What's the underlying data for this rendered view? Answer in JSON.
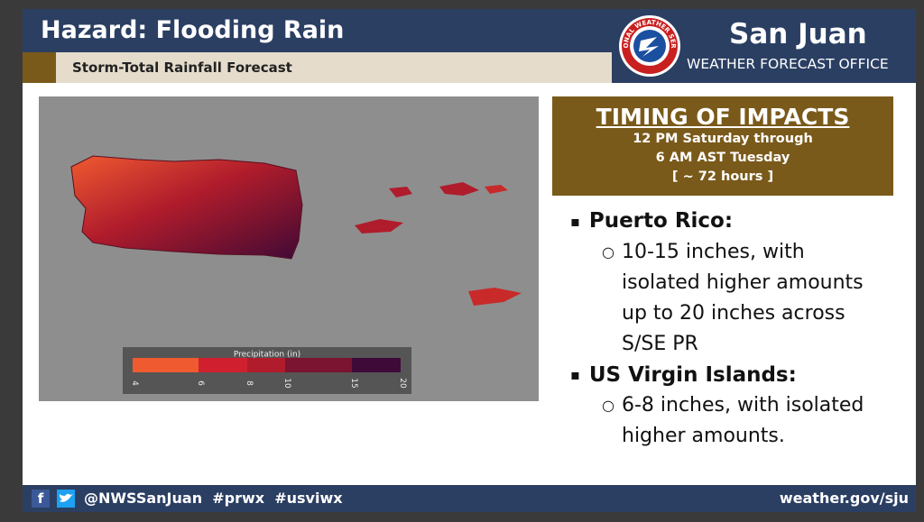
{
  "header": {
    "title": "Hazard: Flooding Rain",
    "subtitle": "Storm-Total Rainfall Forecast",
    "office": "San Juan",
    "office_sub": "WEATHER FORECAST OFFICE",
    "logo_text": "NATIONAL WEATHER SERVICE"
  },
  "map": {
    "legend_title": "Precipitation (in)",
    "legend_ticks": [
      "4",
      "6",
      "8",
      "10",
      "15",
      "20"
    ]
  },
  "timing": {
    "title": "TIMING OF IMPACTS",
    "lines": [
      "12 PM Saturday through",
      "6 AM AST Tuesday",
      "[ ~ 72 hours ]"
    ]
  },
  "impacts": [
    {
      "heading": "Puerto Rico:",
      "items": [
        "10-15 inches, with isolated higher amounts up to 20 inches across S/SE PR"
      ]
    },
    {
      "heading": "US Virgin Islands:",
      "items": [
        "6-8 inches, with isolated higher amounts."
      ]
    }
  ],
  "footer": {
    "social": "@NWSSanJuan  #prwx  #usviwx",
    "url": "weather.gov/sju"
  }
}
